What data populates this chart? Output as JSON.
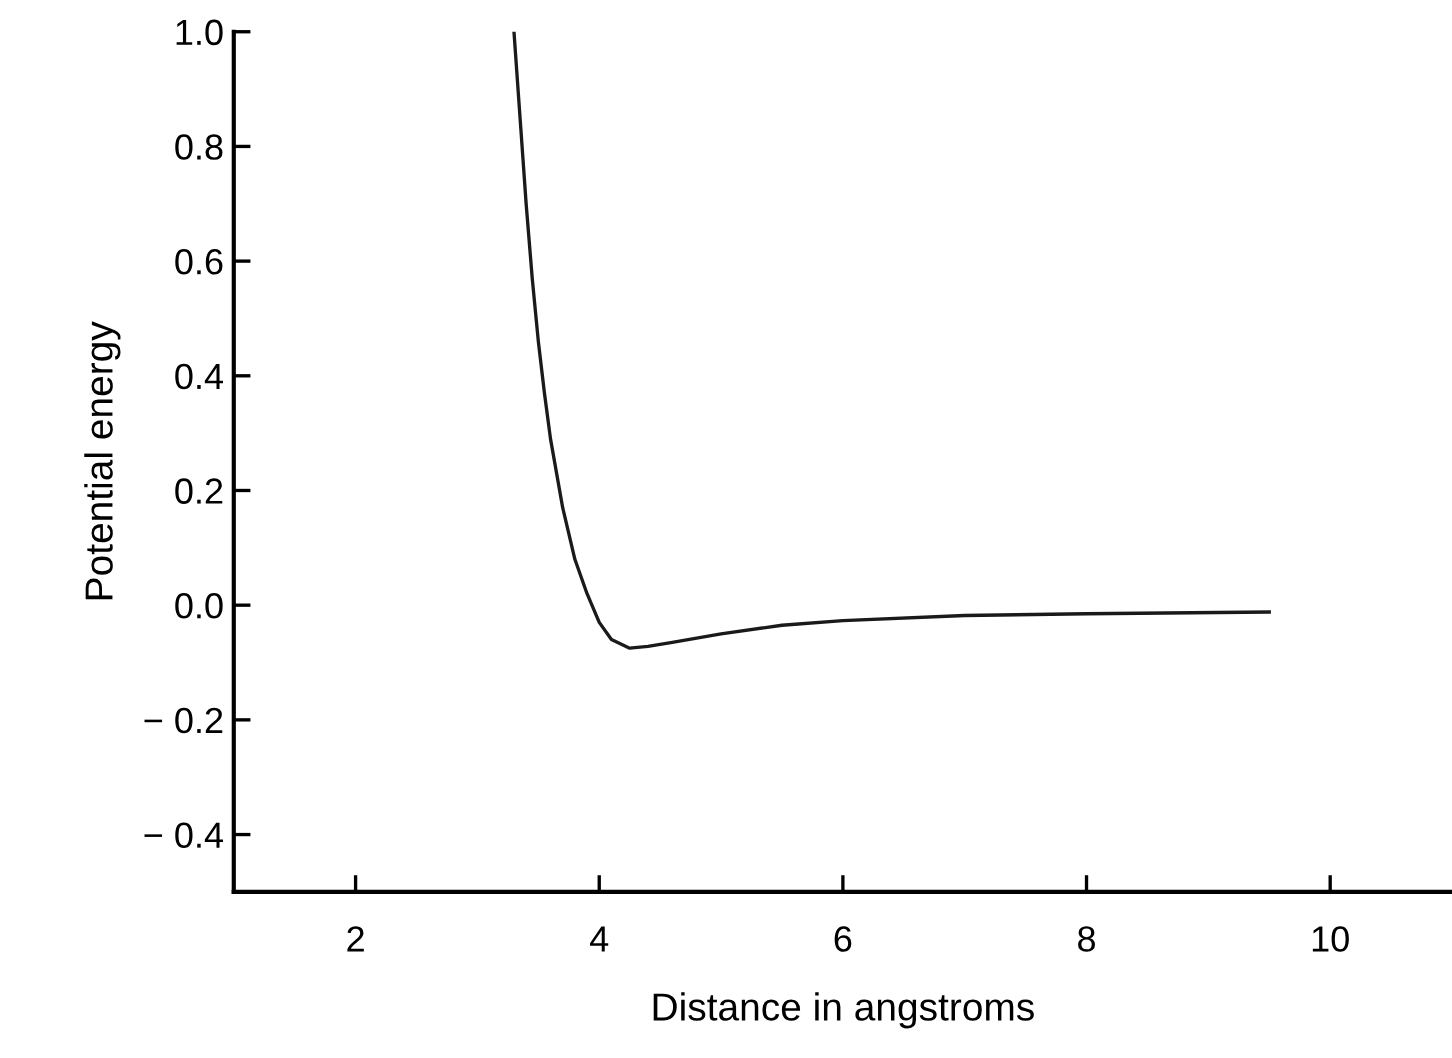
{
  "chart_data": {
    "type": "line",
    "xlabel": "Distance in angstroms",
    "ylabel": "Potential energy",
    "x": [
      3.3,
      3.35,
      3.4,
      3.45,
      3.5,
      3.55,
      3.6,
      3.7,
      3.8,
      3.9,
      4.0,
      4.1,
      4.25,
      4.4,
      4.6,
      5.0,
      5.5,
      6.0,
      7.0,
      8.0,
      9.5
    ],
    "series": [
      {
        "color": "#1a1a1a",
        "values": [
          1.0,
          0.85,
          0.7,
          0.57,
          0.46,
          0.37,
          0.29,
          0.17,
          0.08,
          0.02,
          -0.03,
          -0.06,
          -0.075,
          -0.072,
          -0.065,
          -0.05,
          -0.035,
          -0.027,
          -0.018,
          -0.015,
          -0.012
        ]
      }
    ],
    "xlim": [
      1,
      11
    ],
    "ylim": [
      -0.5,
      1.0
    ],
    "xticks": [
      2,
      4,
      6,
      8,
      10
    ],
    "yticks": [
      {
        "value": -0.4,
        "label": "− 0.4"
      },
      {
        "value": -0.2,
        "label": "− 0.2"
      },
      {
        "value": 0.0,
        "label": "0.0"
      },
      {
        "value": 0.2,
        "label": "0.2"
      },
      {
        "value": 0.4,
        "label": "0.4"
      },
      {
        "value": 0.6,
        "label": "0.6"
      },
      {
        "value": 0.8,
        "label": "0.8"
      },
      {
        "value": 1.0,
        "label": "1.0"
      }
    ],
    "grid": false,
    "legend": false,
    "marker": "none",
    "line_style": "solid"
  }
}
